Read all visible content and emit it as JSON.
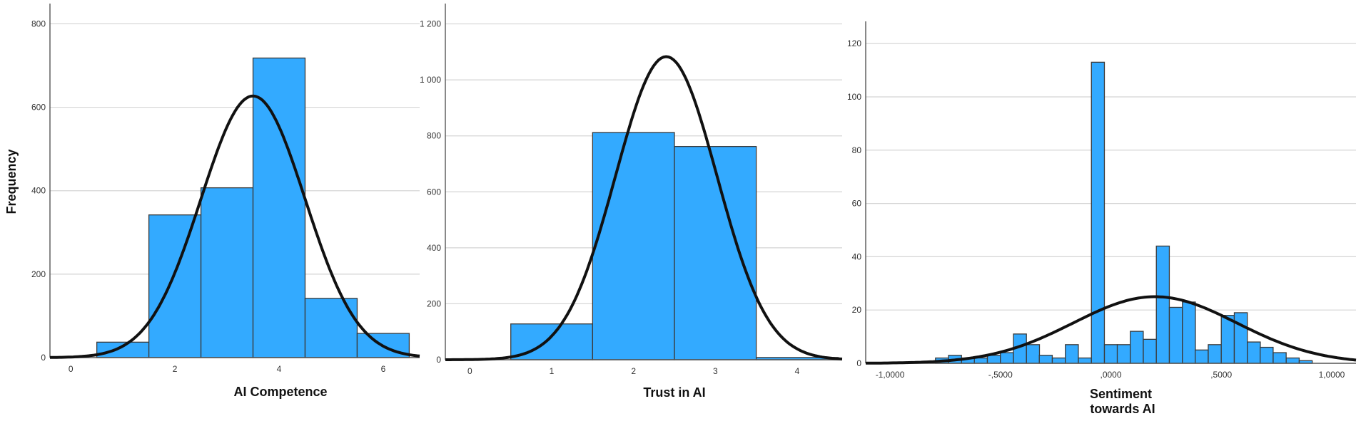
{
  "colors": {
    "bar": "#33aaff",
    "curve": "#111111",
    "grid": "#d4d4d4"
  },
  "chart_data": [
    {
      "type": "bar",
      "title": "",
      "xlabel": "AI Competence",
      "ylabel": "Frequency",
      "ylim": [
        0,
        840
      ],
      "xlim": [
        -0.4,
        6.7
      ],
      "x_ticks": [
        0,
        2,
        4,
        6
      ],
      "y_ticks": [
        0,
        200,
        400,
        600,
        800
      ],
      "y_tick_labels": [
        "0",
        "200",
        "400",
        "600",
        "800"
      ],
      "bins": [
        {
          "center": 1,
          "value": 37
        },
        {
          "center": 2,
          "value": 342
        },
        {
          "center": 3,
          "value": 407
        },
        {
          "center": 4,
          "value": 718
        },
        {
          "center": 5,
          "value": 142
        },
        {
          "center": 6,
          "value": 58
        }
      ],
      "bin_width": 1,
      "normal_curve": {
        "mean": 3.5,
        "sd": 1.0,
        "peak": 627
      },
      "grid": true
    },
    {
      "type": "bar",
      "title": "",
      "xlabel": "Trust in AI",
      "ylabel": "",
      "ylim": [
        0,
        1260
      ],
      "xlim": [
        -0.3,
        4.55
      ],
      "x_ticks": [
        0,
        1,
        2,
        3,
        4
      ],
      "y_ticks": [
        0,
        200,
        400,
        600,
        800,
        1000,
        1200
      ],
      "y_tick_labels": [
        "0",
        "200",
        "400",
        "600",
        "800",
        "1 000",
        "1 200"
      ],
      "bins": [
        {
          "center": 1,
          "value": 128
        },
        {
          "center": 2,
          "value": 812
        },
        {
          "center": 3,
          "value": 762
        },
        {
          "center": 4,
          "value": 8
        }
      ],
      "bin_width": 1,
      "normal_curve": {
        "mean": 2.4,
        "sd": 0.62,
        "peak": 1083
      },
      "grid": true
    },
    {
      "type": "bar",
      "title": "",
      "xlabel": "Sentiment\ntowards AI",
      "ylabel": "",
      "ylim": [
        0,
        127
      ],
      "xlim": [
        -1.11,
        1.11
      ],
      "x_ticks": [
        -1.0,
        -0.5,
        0.0,
        0.5,
        1.0
      ],
      "x_tick_labels": [
        "-1,0000",
        "-,5000",
        ",0000",
        ",5000",
        "1,0000"
      ],
      "y_ticks": [
        0,
        20,
        40,
        60,
        80,
        100,
        120
      ],
      "y_tick_labels": [
        "0",
        "20",
        "40",
        "60",
        "80",
        "100",
        "120"
      ],
      "bin_width": 0.0588,
      "bin_left_edges": [
        -0.794,
        -0.735,
        -0.676,
        -0.618,
        -0.559,
        -0.5,
        -0.441,
        -0.382,
        -0.324,
        -0.265,
        -0.206,
        -0.147,
        -0.088,
        -0.029,
        0.029,
        0.088,
        0.147,
        0.206,
        0.265,
        0.324,
        0.382,
        0.441,
        0.5,
        0.559,
        0.618,
        0.676,
        0.735,
        0.794,
        0.853,
        0.912
      ],
      "values": [
        2,
        3,
        2,
        2,
        3,
        4,
        11,
        7,
        3,
        2,
        7,
        2,
        113,
        7,
        7,
        12,
        9,
        44,
        21,
        23,
        5,
        7,
        18,
        19,
        8,
        6,
        4,
        2,
        1,
        0
      ],
      "normal_curve": {
        "mean": 0.2,
        "sd": 0.37,
        "peak": 25
      },
      "grid": true
    }
  ]
}
